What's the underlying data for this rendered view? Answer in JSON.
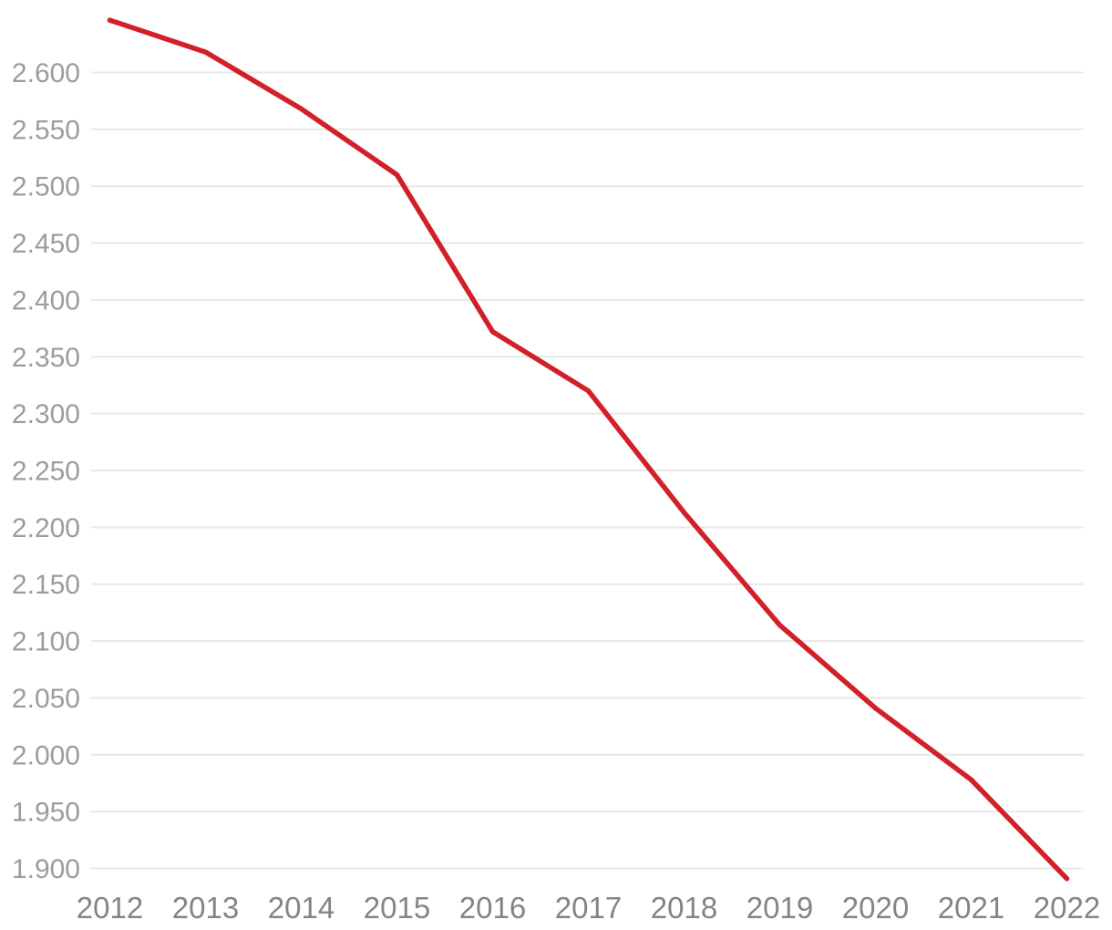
{
  "chart_data": {
    "type": "line",
    "title": "",
    "xlabel": "",
    "ylabel": "",
    "legend": "none",
    "grid": "horizontal",
    "categories": [
      "2012",
      "2013",
      "2014",
      "2015",
      "2016",
      "2017",
      "2018",
      "2019",
      "2020",
      "2021",
      "2022"
    ],
    "series": [
      {
        "name": "value",
        "values": [
          2646,
          2618,
          2568,
          2510,
          2372,
          2320,
          2213,
          2114,
          2041,
          1978,
          1891
        ]
      }
    ],
    "ylim": [
      1886,
      2664
    ],
    "yticks": [
      {
        "value": 1900,
        "label": "1.900"
      },
      {
        "value": 1950,
        "label": "1.950"
      },
      {
        "value": 2000,
        "label": "2.000"
      },
      {
        "value": 2050,
        "label": "2.050"
      },
      {
        "value": 2100,
        "label": "2.100"
      },
      {
        "value": 2150,
        "label": "2.150"
      },
      {
        "value": 2200,
        "label": "2.200"
      },
      {
        "value": 2250,
        "label": "2.250"
      },
      {
        "value": 2300,
        "label": "2.300"
      },
      {
        "value": 2350,
        "label": "2.350"
      },
      {
        "value": 2400,
        "label": "2.400"
      },
      {
        "value": 2450,
        "label": "2.450"
      },
      {
        "value": 2500,
        "label": "2.500"
      },
      {
        "value": 2550,
        "label": "2.550"
      },
      {
        "value": 2600,
        "label": "2.600"
      }
    ],
    "number_format": "dot as thousands separator"
  },
  "styles": {
    "background_color": "#ffffff",
    "line_color": "#d21f28",
    "gridline_color": "#e8e8e8",
    "ytick_label_color": "#9c9c9c",
    "xtick_label_color": "#848484"
  }
}
